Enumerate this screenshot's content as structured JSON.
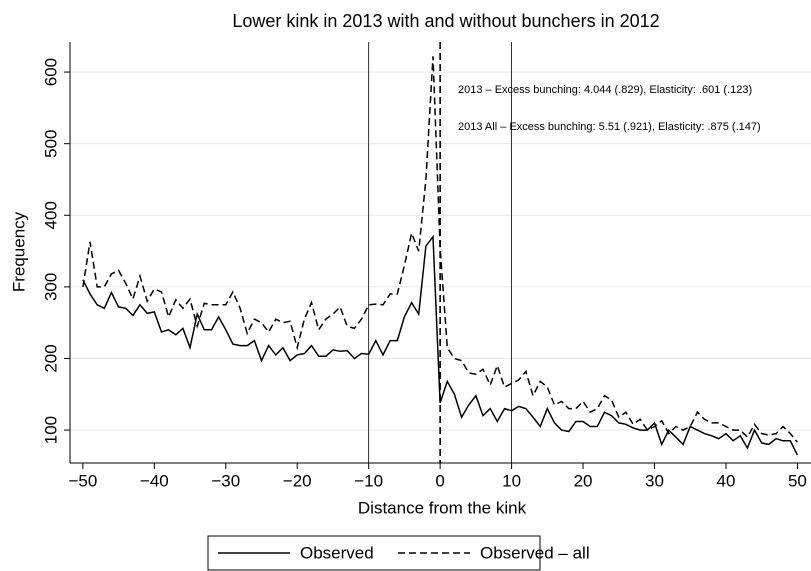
{
  "chart_data": {
    "type": "line",
    "title": "Lower kink in 2013 with and without bunchers in 2012",
    "x_label": "Distance from the kink",
    "y_label": "Frequency",
    "x": [
      -50,
      -49,
      -48,
      -47,
      -46,
      -45,
      -44,
      -43,
      -42,
      -41,
      -40,
      -39,
      -38,
      -37,
      -36,
      -35,
      -34,
      -33,
      -32,
      -31,
      -30,
      -29,
      -28,
      -27,
      -26,
      -25,
      -24,
      -23,
      -22,
      -21,
      -20,
      -19,
      -18,
      -17,
      -16,
      -15,
      -14,
      -13,
      -12,
      -11,
      -10,
      -9,
      -8,
      -7,
      -6,
      -5,
      -4,
      -3,
      -2,
      -1,
      0,
      1,
      2,
      3,
      4,
      5,
      6,
      7,
      8,
      9,
      10,
      11,
      12,
      13,
      14,
      15,
      16,
      17,
      18,
      19,
      20,
      21,
      22,
      23,
      24,
      25,
      26,
      27,
      28,
      29,
      30,
      31,
      32,
      33,
      34,
      35,
      36,
      37,
      38,
      39,
      40,
      41,
      42,
      43,
      44,
      45,
      46,
      47,
      48,
      49,
      50
    ],
    "series": [
      {
        "name": "Observed",
        "color": "#000000",
        "dash": "solid",
        "values": [
          310,
          290,
          275,
          270,
          292,
          272,
          270,
          260,
          275,
          263,
          265,
          237,
          240,
          233,
          242,
          215,
          262,
          240,
          240,
          258,
          240,
          220,
          218,
          218,
          225,
          197,
          218,
          205,
          215,
          197,
          205,
          207,
          218,
          203,
          203,
          212,
          210,
          211,
          200,
          207,
          206,
          225,
          205,
          225,
          225,
          258,
          278,
          262,
          357,
          370,
          138,
          168,
          150,
          118,
          135,
          148,
          120,
          130,
          112,
          130,
          127,
          133,
          130,
          118,
          105,
          130,
          110,
          100,
          98,
          112,
          112,
          105,
          105,
          125,
          120,
          110,
          108,
          103,
          100,
          100,
          110,
          80,
          100,
          90,
          80,
          105,
          100,
          95,
          92,
          88,
          95,
          85,
          92,
          75,
          100,
          82,
          80,
          88,
          85,
          85,
          65
        ]
      },
      {
        "name": "Observed – all",
        "color": "#000000",
        "dash": "dashed",
        "values": [
          300,
          363,
          300,
          300,
          318,
          323,
          305,
          283,
          315,
          280,
          297,
          293,
          258,
          282,
          270,
          283,
          245,
          277,
          275,
          275,
          275,
          293,
          270,
          235,
          255,
          250,
          237,
          255,
          250,
          252,
          215,
          255,
          278,
          240,
          255,
          262,
          272,
          245,
          242,
          255,
          275,
          276,
          275,
          290,
          290,
          330,
          375,
          350,
          450,
          622,
          355,
          215,
          200,
          197,
          180,
          178,
          185,
          163,
          190,
          160,
          165,
          170,
          182,
          148,
          168,
          160,
          135,
          140,
          130,
          130,
          140,
          125,
          130,
          148,
          142,
          118,
          125,
          108,
          115,
          100,
          105,
          113,
          95,
          105,
          100,
          105,
          125,
          115,
          110,
          110,
          105,
          100,
          100,
          90,
          108,
          95,
          93,
          95,
          105,
          95,
          83
        ]
      }
    ],
    "reference_lines": [
      {
        "x": -10,
        "style": "solid"
      },
      {
        "x": 0,
        "style": "dashed"
      },
      {
        "x": 10,
        "style": "solid"
      }
    ],
    "annotations": [
      "2013 – Excess bunching: 4.044 (.829), Elasticity: .601 (.123)",
      "2013 All – Excess bunching: 5.51 (.921), Elasticity: .875 (.147)"
    ],
    "xlim": [
      -51.8,
      51.9
    ],
    "ylim": [
      54,
      642
    ],
    "xticks": [
      {
        "value": -50,
        "label": "−50"
      },
      {
        "value": -40,
        "label": "−40"
      },
      {
        "value": -30,
        "label": "−30"
      },
      {
        "value": -20,
        "label": "−20"
      },
      {
        "value": -10,
        "label": "−10"
      },
      0,
      10,
      20,
      30,
      40,
      50
    ],
    "yticks": [
      100,
      200,
      300,
      400,
      500,
      600
    ],
    "grid": true,
    "legend": "bottom"
  }
}
